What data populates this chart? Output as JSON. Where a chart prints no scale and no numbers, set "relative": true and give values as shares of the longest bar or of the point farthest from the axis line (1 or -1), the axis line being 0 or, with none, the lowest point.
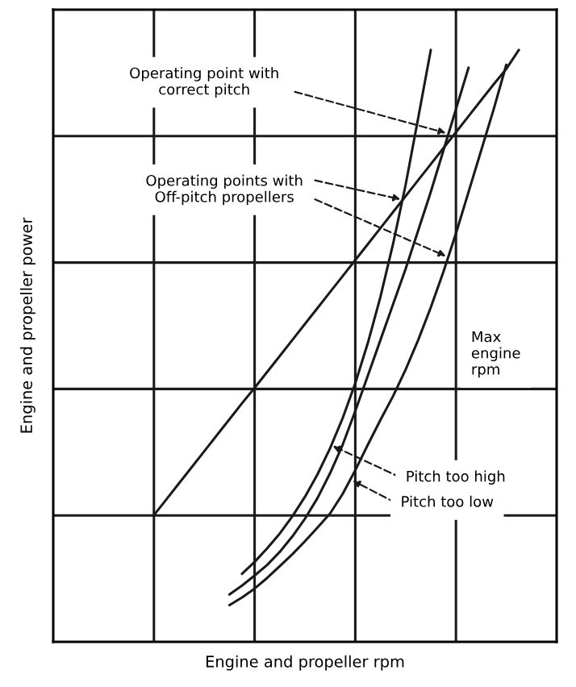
{
  "chart_data": {
    "type": "line",
    "relative": true,
    "xlabel": "Engine and propeller rpm",
    "ylabel": "Engine and propeller power",
    "grid": true,
    "tick_labels": false,
    "categories": [
      null,
      null,
      null,
      null,
      null,
      null,
      null,
      null,
      null,
      null,
      null,
      null,
      null,
      null,
      null,
      null,
      null,
      null,
      null,
      null,
      null,
      null,
      null,
      null,
      null,
      null,
      null,
      null,
      null,
      null,
      null,
      null,
      null,
      null,
      null,
      null,
      null,
      null,
      null,
      null,
      null
    ],
    "series": [
      {
        "color": "#1a1a1a",
        "values": [
          null,
          null,
          null,
          null,
          null,
          null,
          null,
          null,
          0.214,
          0.241,
          0.268,
          0.295,
          0.322,
          0.349,
          0.376,
          0.403,
          0.429,
          0.456,
          0.483,
          0.51,
          0.537,
          0.564,
          0.591,
          0.618,
          0.645,
          0.672,
          0.699,
          0.726,
          0.753,
          0.78,
          0.807,
          0.834,
          0.861,
          0.888,
          0.915,
          0.942,
          0.968,
          1.0,
          null,
          null,
          null
        ]
      },
      {
        "color": "#1a1a1a",
        "values": [
          null,
          null,
          null,
          null,
          null,
          null,
          null,
          null,
          null,
          null,
          null,
          null,
          null,
          null,
          null,
          0.115,
          0.135,
          0.158,
          0.183,
          0.212,
          0.245,
          0.283,
          0.327,
          0.378,
          0.437,
          0.505,
          0.583,
          0.672,
          0.772,
          0.885,
          1.0,
          null,
          null,
          null,
          null,
          null,
          null,
          null,
          null,
          null,
          null
        ]
      },
      {
        "color": "#1a1a1a",
        "values": [
          null,
          null,
          null,
          null,
          null,
          null,
          null,
          null,
          null,
          null,
          null,
          null,
          null,
          null,
          0.08,
          0.095,
          0.112,
          0.13,
          0.152,
          0.178,
          0.208,
          0.243,
          0.285,
          0.333,
          0.39,
          0.45,
          0.51,
          0.57,
          0.63,
          0.695,
          0.76,
          0.83,
          0.9,
          0.97,
          null,
          null,
          null,
          null,
          null,
          null,
          null
        ]
      },
      {
        "color": "#1a1a1a",
        "values": [
          null,
          null,
          null,
          null,
          null,
          null,
          null,
          null,
          null,
          null,
          null,
          null,
          null,
          null,
          0.062,
          0.075,
          0.09,
          0.108,
          0.128,
          0.148,
          0.17,
          0.193,
          0.217,
          0.25,
          0.29,
          0.333,
          0.375,
          0.415,
          0.46,
          0.51,
          0.565,
          0.625,
          0.69,
          0.76,
          0.83,
          0.9,
          0.975,
          null,
          null,
          null,
          null
        ]
      }
    ],
    "annotations": [
      "Operating point with\ncorrect pitch",
      "Operating points with\nOff-pitch propellers",
      "Max\nengine\nrpm",
      "Pitch too high",
      "Pitch too low"
    ]
  }
}
